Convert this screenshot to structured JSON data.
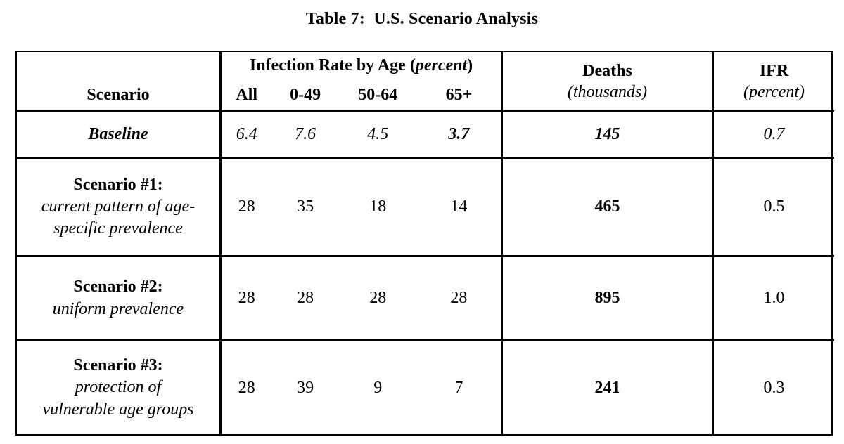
{
  "title": "Table 7:  U.S. Scenario Analysis",
  "table": {
    "header": {
      "scenario": "Scenario",
      "group_prefix": "Infection Rate by Age (",
      "group_italic": "percent",
      "group_suffix": ")",
      "ages": [
        "All",
        "0-49",
        "50-64",
        "65+"
      ],
      "deaths_title": "Deaths",
      "deaths_unit": "(thousands)",
      "ifr_title": "IFR",
      "ifr_unit": "(percent)"
    },
    "rows": [
      {
        "name": "Baseline",
        "rates": [
          "6.4",
          "7.6",
          "4.5",
          "3.7"
        ],
        "deaths": "145",
        "ifr": "0.7"
      },
      {
        "name": "Scenario #1:",
        "subtitle_lines": [
          "current pattern of age-",
          "specific prevalence"
        ],
        "rates": [
          "28",
          "35",
          "18",
          "14"
        ],
        "deaths": "465",
        "ifr": "0.5"
      },
      {
        "name": "Scenario #2:",
        "subtitle_lines": [
          "uniform prevalence"
        ],
        "rates": [
          "28",
          "28",
          "28",
          "28"
        ],
        "deaths": "895",
        "ifr": "1.0"
      },
      {
        "name": "Scenario #3:",
        "subtitle_lines": [
          "protection of",
          "vulnerable age groups"
        ],
        "rates": [
          "28",
          "39",
          "9",
          "7"
        ],
        "deaths": "241",
        "ifr": "0.3"
      }
    ]
  }
}
